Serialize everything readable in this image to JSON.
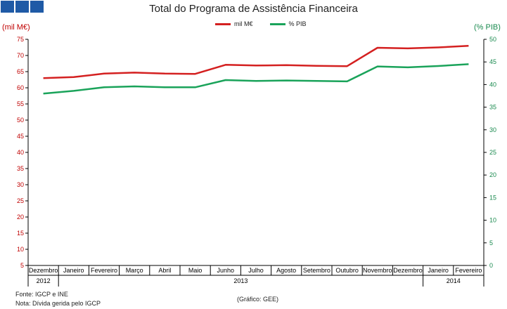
{
  "header": {
    "logo_color": "#1f5aa6",
    "title": "Total do Programa de Assistência Financeira"
  },
  "footer": {
    "source": "Fonte: IGCP e INE",
    "note": "Nota: Dívida gerida pelo IGCP",
    "graphic": "(Gráfico: GEE)"
  },
  "chart_data": {
    "type": "line",
    "title": "Total do Programa de Assistência Financeira",
    "ylabel_left": "(mil M€)",
    "ylabel_right": "(% PIB)",
    "legend_position": "top-center",
    "grid": false,
    "categories": [
      "Dezembro",
      "Janeiro",
      "Fevereiro",
      "Março",
      "Abril",
      "Maio",
      "Junho",
      "Julho",
      "Agosto",
      "Setembro",
      "Outubro",
      "Novembro",
      "Dezembro",
      "Janeiro",
      "Fevereiro"
    ],
    "year_groups": [
      {
        "label": "2012",
        "start": 0,
        "end": 0
      },
      {
        "label": "2013",
        "start": 1,
        "end": 12
      },
      {
        "label": "2014",
        "start": 13,
        "end": 14
      }
    ],
    "left_axis": {
      "min": 5,
      "max": 75,
      "step": 5,
      "color": "#c00000"
    },
    "right_axis": {
      "min": 0,
      "max": 50,
      "step": 5,
      "color": "#1a8a4f"
    },
    "series": [
      {
        "name": "mil M€",
        "axis": "left",
        "color": "#d42020",
        "values": [
          63.0,
          63.3,
          64.4,
          64.7,
          64.4,
          64.3,
          67.1,
          66.9,
          67.0,
          66.8,
          66.7,
          72.4,
          72.2,
          72.5,
          73.0
        ]
      },
      {
        "name": "% PIB",
        "axis": "right",
        "color": "#1aa35a",
        "values": [
          38.0,
          38.6,
          39.4,
          39.6,
          39.4,
          39.4,
          41.0,
          40.8,
          40.9,
          40.8,
          40.7,
          44.0,
          43.8,
          44.1,
          44.5
        ]
      }
    ]
  }
}
